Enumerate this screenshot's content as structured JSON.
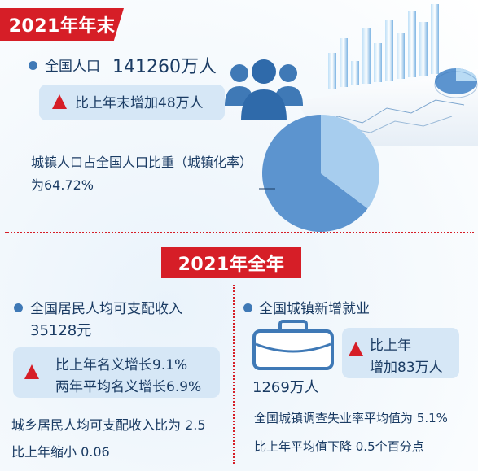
{
  "end_2021": {
    "header": "2021年年末",
    "population_label": "全国人口",
    "population_value": "141260万人",
    "increase_text": "比上年末增加48万人",
    "urbanization_line1": "城镇人口占全国人口比重（城镇化率）",
    "urbanization_line2": "为64.72%",
    "urbanization_rate": 64.72
  },
  "full_2021": {
    "header": "2021年全年",
    "income_label": "全国居民人均可支配收入",
    "income_value": "35128元",
    "income_growth_line1": "比上年名义增长9.1%",
    "income_growth_line2": "两年平均名义增长6.9%",
    "ratio_line1": "城乡居民人均可支配收入比为 2.5",
    "ratio_line2": "比上年缩小 0.06",
    "employment_label": "全国城镇新增就业",
    "employment_value": "1269万人",
    "employment_change_line1": "比上年",
    "employment_change_line2": "增加83万人",
    "unemployment_line1": "全国城镇调查失业率平均值为 5.1%",
    "unemployment_line2": "比上年平均值下降 0.5个百分点"
  },
  "colors": {
    "red": "#d61e27",
    "blue_dark": "#1a3b63",
    "blue_mid": "#3f79b6",
    "blue_light": "#d6e7f6",
    "pie_urban": "#5c94cf",
    "pie_rural": "#a7cdee"
  },
  "icons": [
    "people-icon",
    "briefcase-icon",
    "up-arrow-icon",
    "bullet-icon"
  ]
}
